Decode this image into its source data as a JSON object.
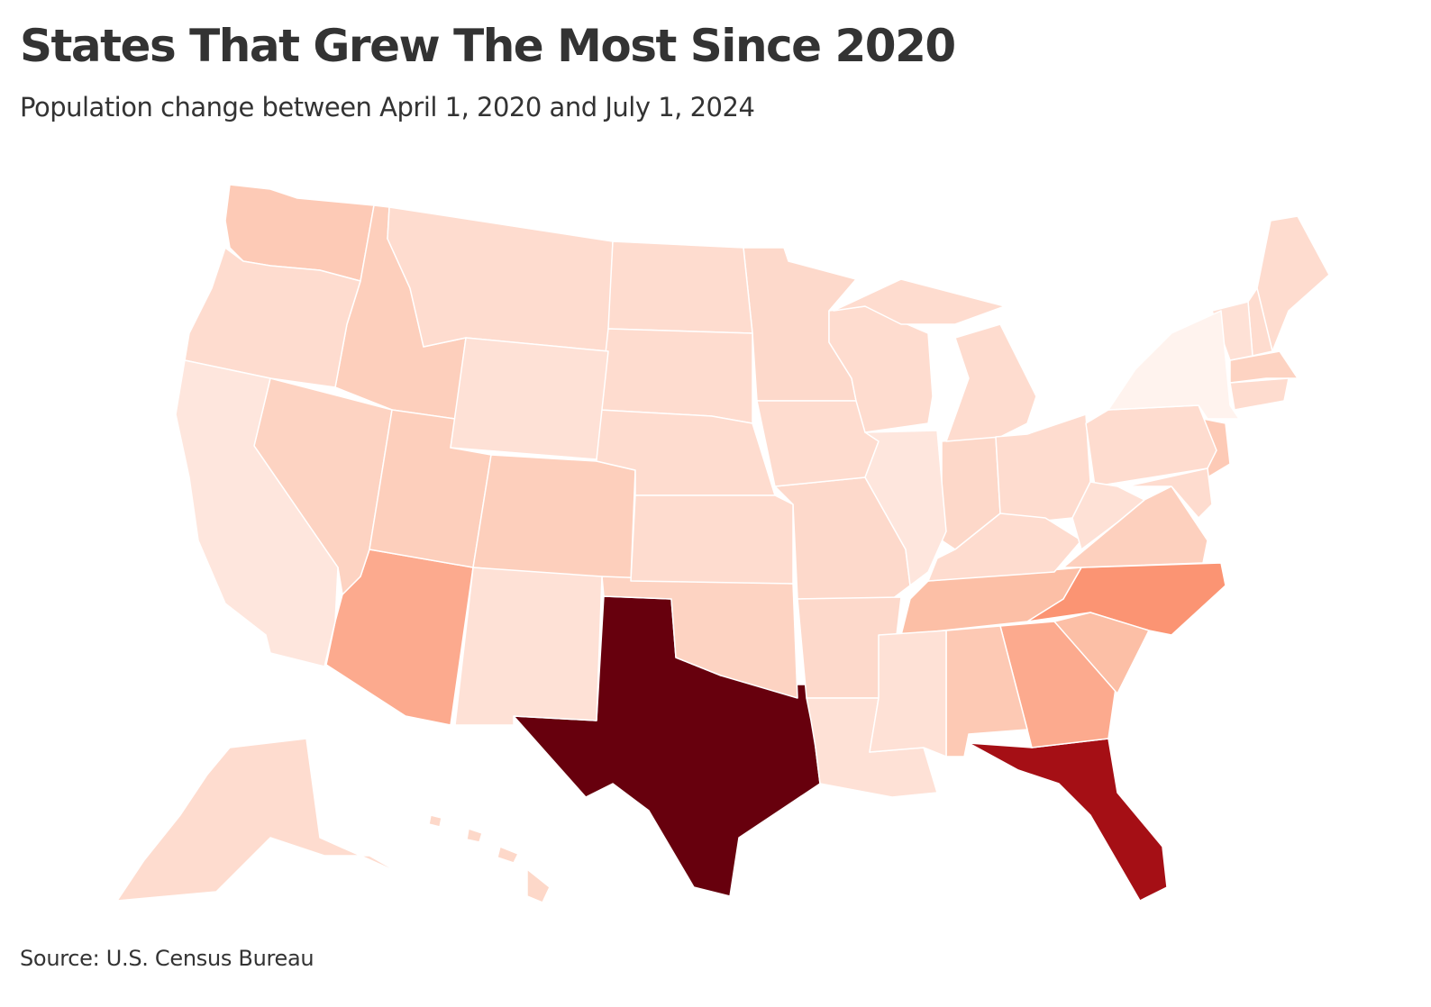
{
  "header": {
    "title": "States That Grew The Most Since 2020",
    "subtitle": "Population change between April 1, 2020 and July 1, 2024"
  },
  "footer": {
    "source": "Source: U.S. Census Bureau"
  },
  "chart_data": {
    "type": "choropleth",
    "title": "States That Grew The Most Since 2020",
    "subtitle": "Population change between April 1, 2020 and July 1, 2024",
    "legend": "none",
    "color_scale": "sequential reds (light = least growth, dark = most growth)",
    "states": [
      {
        "abbr": "TX",
        "color": "#67000d"
      },
      {
        "abbr": "FL",
        "color": "#a50f15"
      },
      {
        "abbr": "NC",
        "color": "#fb9473"
      },
      {
        "abbr": "GA",
        "color": "#fcaa8e"
      },
      {
        "abbr": "AZ",
        "color": "#fcaa8e"
      },
      {
        "abbr": "TN",
        "color": "#fcbfa6"
      },
      {
        "abbr": "SC",
        "color": "#fcbfa6"
      },
      {
        "abbr": "AL",
        "color": "#fdc9b4"
      },
      {
        "abbr": "WA",
        "color": "#fdcab6"
      },
      {
        "abbr": "ID",
        "color": "#fdcfbc"
      },
      {
        "abbr": "NV",
        "color": "#fdd3c2"
      },
      {
        "abbr": "UT",
        "color": "#fdcfbc"
      },
      {
        "abbr": "CO",
        "color": "#fdcfbc"
      },
      {
        "abbr": "OK",
        "color": "#fdd3c2"
      },
      {
        "abbr": "VA",
        "color": "#fdd0be"
      },
      {
        "abbr": "NJ",
        "color": "#fdcab6"
      },
      {
        "abbr": "MA",
        "color": "#fdd3c2"
      },
      {
        "abbr": "IN",
        "color": "#fdd8c9"
      },
      {
        "abbr": "MO",
        "color": "#fdd9cb"
      },
      {
        "abbr": "AR",
        "color": "#fdd9cb"
      },
      {
        "abbr": "MN",
        "color": "#fdd9cb"
      },
      {
        "abbr": "OR",
        "color": "#fedccf"
      },
      {
        "abbr": "MT",
        "color": "#fedccf"
      },
      {
        "abbr": "ND",
        "color": "#fedccf"
      },
      {
        "abbr": "SD",
        "color": "#fedccf"
      },
      {
        "abbr": "NE",
        "color": "#fedccf"
      },
      {
        "abbr": "KS",
        "color": "#fedccf"
      },
      {
        "abbr": "IA",
        "color": "#fedccf"
      },
      {
        "abbr": "WI",
        "color": "#fedccf"
      },
      {
        "abbr": "MI",
        "color": "#fedccf"
      },
      {
        "abbr": "OH",
        "color": "#fedccf"
      },
      {
        "abbr": "KY",
        "color": "#fedccf"
      },
      {
        "abbr": "PA",
        "color": "#fedccf"
      },
      {
        "abbr": "MD",
        "color": "#fedccf"
      },
      {
        "abbr": "CT",
        "color": "#fedccf"
      },
      {
        "abbr": "ME",
        "color": "#fedccf"
      },
      {
        "abbr": "NH",
        "color": "#fedccf"
      },
      {
        "abbr": "AK",
        "color": "#fedccf"
      },
      {
        "abbr": "HI",
        "color": "#fdd8c9"
      },
      {
        "abbr": "WY",
        "color": "#fee1d6"
      },
      {
        "abbr": "NM",
        "color": "#fee1d6"
      },
      {
        "abbr": "LA",
        "color": "#fee1d6"
      },
      {
        "abbr": "MS",
        "color": "#fee1d6"
      },
      {
        "abbr": "WV",
        "color": "#fee1d6"
      },
      {
        "abbr": "VT",
        "color": "#fee1d6"
      },
      {
        "abbr": "CA",
        "color": "#fee6dd"
      },
      {
        "abbr": "IL",
        "color": "#fee6dd"
      },
      {
        "abbr": "NY",
        "color": "#fff3ee"
      }
    ]
  }
}
